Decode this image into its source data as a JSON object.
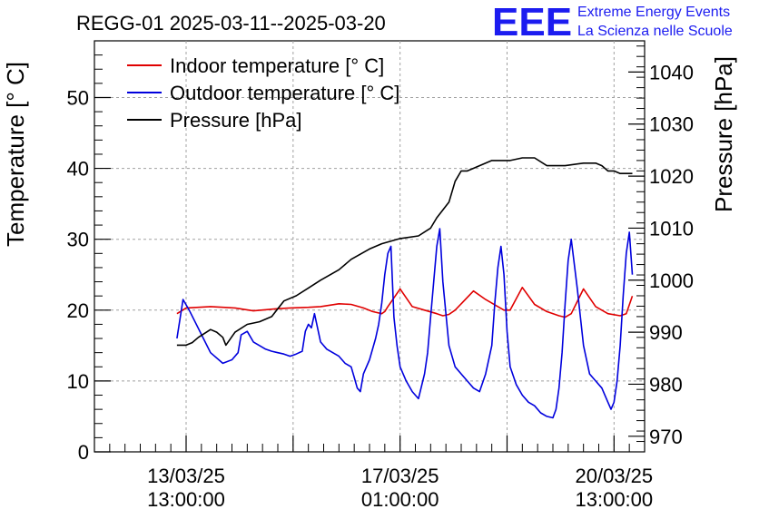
{
  "chart_data": {
    "type": "line",
    "title": "REGG-01 2025-03-11--2025-03-20",
    "logo": {
      "letters": "EEE",
      "line1": "Extreme Energy Events",
      "line2": "La Scienza nelle Scuole",
      "color": "#1c1cf0"
    },
    "x_tick_labels": [
      {
        "date": "13/03/25",
        "time": "13:00:00",
        "day": 2.5
      },
      {
        "date": "17/03/25",
        "time": "01:00:00",
        "day": 6.0
      },
      {
        "date": "20/03/25",
        "time": "13:00:00",
        "day": 9.5
      }
    ],
    "x_range_days": [
      1.0,
      10.0
    ],
    "y_left": {
      "label": "Temperature [° C]",
      "range": [
        0,
        58
      ],
      "ticks": [
        0,
        10,
        20,
        30,
        40,
        50
      ]
    },
    "y_right": {
      "label": "Pressure [hPa]",
      "range": [
        967,
        1046
      ],
      "ticks": [
        970,
        980,
        990,
        1000,
        1010,
        1020,
        1030,
        1040
      ]
    },
    "legend_position": "top-left",
    "series": [
      {
        "name": "Indoor temperature [° C]",
        "axis": "left",
        "color": "#e00000",
        "x": [
          2.35,
          2.5,
          2.9,
          3.3,
          3.6,
          4.0,
          4.2,
          4.5,
          4.7,
          5.0,
          5.2,
          5.4,
          5.55,
          5.7,
          5.75,
          5.8,
          6.0,
          6.2,
          6.4,
          6.6,
          6.7,
          6.8,
          6.9,
          7.2,
          7.4,
          7.6,
          7.7,
          7.8,
          8.0,
          8.2,
          8.4,
          8.6,
          8.7,
          8.8,
          9.0,
          9.2,
          9.4,
          9.6,
          9.7,
          9.8
        ],
        "values": [
          19.5,
          20.3,
          20.5,
          20.3,
          19.9,
          20.2,
          20.3,
          20.4,
          20.5,
          20.9,
          20.8,
          20.3,
          19.8,
          19.5,
          19.8,
          20.5,
          23.0,
          20.5,
          20.0,
          19.5,
          19.2,
          19.4,
          20.0,
          22.7,
          21.5,
          20.5,
          20.0,
          20.0,
          23.2,
          20.8,
          19.8,
          19.2,
          19.0,
          19.5,
          23.0,
          20.5,
          19.5,
          19.2,
          19.5,
          22.0
        ]
      },
      {
        "name": "Outdoor temperature [° C]",
        "axis": "left",
        "color": "#0000dd",
        "x": [
          2.35,
          2.45,
          2.55,
          2.9,
          3.1,
          3.25,
          3.35,
          3.4,
          3.5,
          3.6,
          3.8,
          3.9,
          4.0,
          4.1,
          4.2,
          4.3,
          4.4,
          4.45,
          4.5,
          4.55,
          4.6,
          4.7,
          4.8,
          4.9,
          5.0,
          5.1,
          5.2,
          5.25,
          5.3,
          5.35,
          5.4,
          5.5,
          5.6,
          5.65,
          5.7,
          5.75,
          5.8,
          5.85,
          5.9,
          5.95,
          6.0,
          6.1,
          6.2,
          6.3,
          6.4,
          6.45,
          6.5,
          6.55,
          6.6,
          6.65,
          6.7,
          6.8,
          6.9,
          7.0,
          7.1,
          7.2,
          7.3,
          7.4,
          7.5,
          7.55,
          7.6,
          7.65,
          7.7,
          7.75,
          7.8,
          7.9,
          8.0,
          8.1,
          8.2,
          8.3,
          8.4,
          8.5,
          8.55,
          8.6,
          8.65,
          8.7,
          8.75,
          8.8,
          8.9,
          9.0,
          9.1,
          9.2,
          9.3,
          9.4,
          9.45,
          9.5,
          9.55,
          9.6,
          9.65,
          9.7,
          9.75,
          9.8
        ],
        "values": [
          16,
          21.5,
          20,
          14,
          12.5,
          13,
          14,
          16.5,
          17,
          15.5,
          14.5,
          14.2,
          14,
          13.8,
          13.5,
          13.8,
          14.2,
          17,
          18,
          17.5,
          19.5,
          15.5,
          14.5,
          14,
          13.5,
          12.5,
          12,
          10.5,
          9,
          8.5,
          11,
          13,
          16,
          18,
          21,
          25,
          28,
          29,
          19,
          15,
          12,
          10,
          8.5,
          7.5,
          11,
          14,
          19,
          24,
          29,
          31.5,
          24,
          15,
          12,
          11,
          10,
          9,
          8.5,
          11,
          15,
          21,
          26,
          29,
          25,
          17,
          12,
          9.5,
          8,
          7,
          6.5,
          5.5,
          5,
          4.8,
          6,
          9,
          14,
          21,
          27,
          30,
          23,
          15,
          11,
          10,
          9,
          7,
          6,
          7,
          10,
          15,
          22,
          28,
          31,
          25
        ]
      },
      {
        "name": "Pressure [hPa]",
        "axis": "right",
        "color": "#000000",
        "x": [
          2.35,
          2.5,
          2.6,
          2.7,
          2.9,
          3.0,
          3.1,
          3.15,
          3.3,
          3.5,
          3.7,
          3.9,
          4.0,
          4.1,
          4.3,
          4.5,
          4.7,
          5.0,
          5.2,
          5.5,
          5.7,
          6.0,
          6.3,
          6.5,
          6.6,
          6.8,
          6.9,
          7.0,
          7.1,
          7.2,
          7.3,
          7.5,
          7.6,
          7.8,
          8.0,
          8.2,
          8.4,
          8.5,
          8.7,
          9.0,
          9.2,
          9.3,
          9.4,
          9.5,
          9.6,
          9.75,
          9.8
        ],
        "values": [
          987.5,
          987.5,
          988,
          989,
          990.5,
          990,
          989,
          987.5,
          990,
          991.5,
          992,
          993,
          994.5,
          996,
          997,
          998.5,
          1000,
          1002,
          1004,
          1006,
          1007,
          1008,
          1008.5,
          1010,
          1012,
          1015,
          1019,
          1021,
          1021,
          1021.5,
          1022,
          1023,
          1023,
          1023,
          1023.5,
          1023.5,
          1022,
          1022,
          1022,
          1022.5,
          1022.5,
          1022,
          1021,
          1021,
          1020.5,
          1020.5,
          1020.5
        ]
      }
    ]
  }
}
